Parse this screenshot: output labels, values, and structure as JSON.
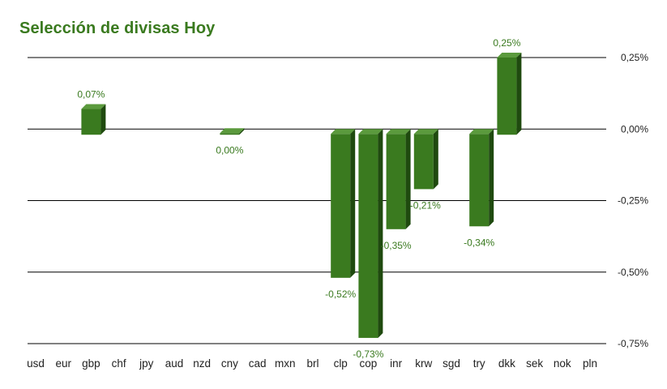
{
  "colors": {
    "title": "#3a7a1f",
    "bar_front": "#3a7a1f",
    "bar_top": "#5b9a3d",
    "bar_side": "#1f4a0f",
    "grid": "#000000",
    "label_text": "#3a7a1f",
    "axis_text": "#222222"
  },
  "chart_data": {
    "type": "bar",
    "title": "Selección de divisas Hoy",
    "xlabel": "",
    "ylabel": "",
    "ylim": [
      -0.75,
      0.25
    ],
    "yaxis_position": "right",
    "grid": true,
    "legend": "none",
    "y_ticks": [
      0.25,
      0.0,
      -0.25,
      -0.5,
      -0.75
    ],
    "y_tick_labels": [
      "0,25%",
      "0,00%",
      "-0,25%",
      "-0,50%",
      "-0,75%"
    ],
    "categories": [
      "usd",
      "eur",
      "gbp",
      "chf",
      "jpy",
      "aud",
      "nzd",
      "cny",
      "cad",
      "mxn",
      "brl",
      "clp",
      "cop",
      "inr",
      "krw",
      "sgd",
      "try",
      "dkk",
      "sek",
      "nok",
      "pln"
    ],
    "values": [
      null,
      null,
      0.07,
      null,
      null,
      null,
      null,
      0.0,
      null,
      null,
      null,
      -0.52,
      -0.73,
      -0.35,
      -0.21,
      null,
      -0.34,
      0.25,
      null,
      null,
      null
    ],
    "data_labels": [
      "",
      "",
      "0,07%",
      "",
      "",
      "",
      "",
      "0,00%",
      "",
      "",
      "",
      "-0,52%",
      "-0,73%",
      "-0,35%",
      "-0,21%",
      "",
      "-0,34%",
      "0,25%",
      "",
      "",
      ""
    ]
  }
}
